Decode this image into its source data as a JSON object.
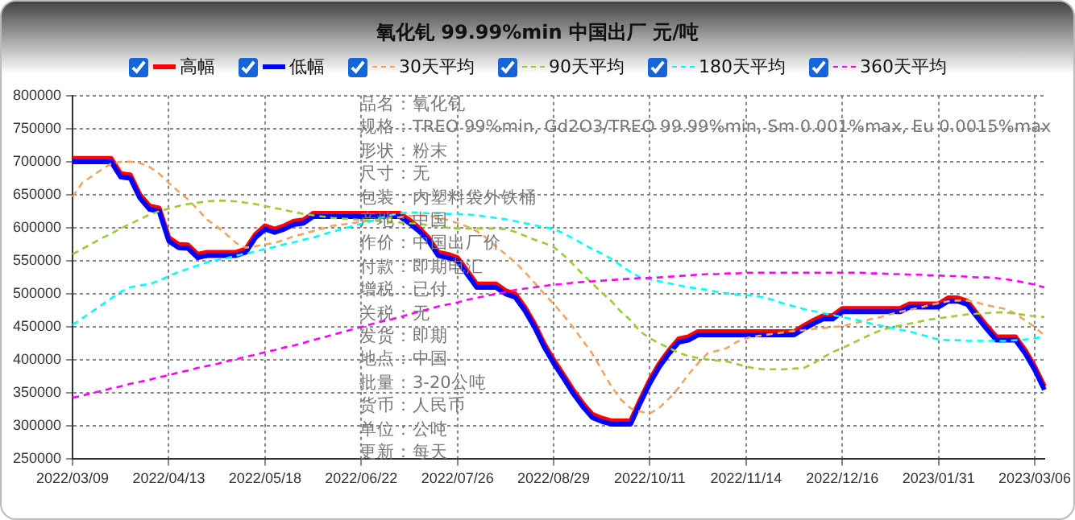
{
  "chart_data": {
    "type": "line",
    "title": "氧化钆 99.99%min 中国出厂 元/吨",
    "categories": [
      "2022/03/09",
      null,
      null,
      null,
      null,
      null,
      null,
      null,
      null,
      null,
      "2022/04/13",
      null,
      null,
      null,
      null,
      null,
      null,
      null,
      null,
      null,
      "2022/05/18",
      null,
      null,
      null,
      null,
      null,
      null,
      null,
      null,
      null,
      "2022/06/22",
      null,
      null,
      null,
      null,
      null,
      null,
      null,
      null,
      null,
      "2022/07/26",
      null,
      null,
      null,
      null,
      null,
      null,
      null,
      null,
      null,
      "2022/08/29",
      null,
      null,
      null,
      null,
      null,
      null,
      null,
      null,
      null,
      "2022/10/11",
      null,
      null,
      null,
      null,
      null,
      null,
      null,
      null,
      null,
      "2022/11/14",
      null,
      null,
      null,
      null,
      null,
      null,
      null,
      null,
      null,
      "2022/12/16",
      null,
      null,
      null,
      null,
      null,
      null,
      null,
      null,
      null,
      "2023/01/31",
      null,
      null,
      null,
      null,
      null,
      null,
      null,
      null,
      null,
      "2023/03/06",
      null
    ],
    "series": [
      {
        "name": "高幅",
        "color": "#ff0000",
        "line_style": "solid",
        "values": [
          705000,
          705000,
          705000,
          705000,
          705000,
          682000,
          680000,
          650000,
          633000,
          630000,
          585000,
          575000,
          574000,
          560000,
          563000,
          563000,
          563000,
          563000,
          568000,
          590000,
          603000,
          598000,
          603000,
          610000,
          612000,
          622000,
          622000,
          622000,
          622000,
          622000,
          622000,
          622000,
          622000,
          622000,
          622000,
          612000,
          600000,
          585000,
          563000,
          560000,
          555000,
          535000,
          515000,
          515000,
          515000,
          505000,
          500000,
          480000,
          455000,
          425000,
          400000,
          378000,
          355000,
          335000,
          318000,
          312000,
          308000,
          308000,
          308000,
          340000,
          370000,
          395000,
          415000,
          432000,
          435000,
          443000,
          443000,
          443000,
          443000,
          443000,
          443000,
          443000,
          443000,
          443000,
          443000,
          443000,
          452000,
          460000,
          467000,
          467000,
          478000,
          478000,
          478000,
          478000,
          478000,
          478000,
          478000,
          485000,
          485000,
          485000,
          485000,
          494000,
          494000,
          489000,
          470000,
          452000,
          435000,
          435000,
          435000,
          415000,
          390000,
          360000
        ]
      },
      {
        "name": "低幅",
        "color": "#0000ff",
        "line_style": "solid",
        "values": [
          700000,
          700000,
          700000,
          700000,
          700000,
          677000,
          675000,
          645000,
          628000,
          625000,
          580000,
          570000,
          569000,
          555000,
          558000,
          558000,
          558000,
          558000,
          563000,
          585000,
          598000,
          593000,
          598000,
          605000,
          607000,
          617000,
          617000,
          617000,
          617000,
          617000,
          617000,
          617000,
          617000,
          617000,
          617000,
          607000,
          595000,
          580000,
          558000,
          555000,
          550000,
          530000,
          510000,
          510000,
          510000,
          500000,
          495000,
          475000,
          450000,
          420000,
          395000,
          373000,
          350000,
          330000,
          313000,
          307000,
          303000,
          303000,
          303000,
          335000,
          365000,
          390000,
          410000,
          427000,
          430000,
          438000,
          438000,
          438000,
          438000,
          438000,
          438000,
          438000,
          438000,
          438000,
          438000,
          438000,
          447000,
          455000,
          462000,
          462000,
          473000,
          473000,
          473000,
          473000,
          473000,
          473000,
          473000,
          480000,
          480000,
          480000,
          480000,
          489000,
          489000,
          484000,
          465000,
          447000,
          430000,
          430000,
          430000,
          410000,
          385000,
          355000
        ]
      },
      {
        "name": "30天平均",
        "color": "#f4a460",
        "line_style": "dashed",
        "values": [
          647000,
          668000,
          678000,
          688000,
          697000,
          700000,
          700000,
          698000,
          692000,
          682000,
          668000,
          655000,
          643000,
          628000,
          612000,
          602000,
          590000,
          577000,
          570000,
          572000,
          575000,
          577000,
          582000,
          587000,
          591000,
          595000,
          599000,
          603000,
          605000,
          607000,
          609000,
          611000,
          613000,
          615000,
          616000,
          618000,
          619000,
          618000,
          616000,
          612000,
          607000,
          602000,
          595000,
          585000,
          572000,
          560000,
          548000,
          533000,
          517000,
          500000,
          485000,
          468000,
          450000,
          430000,
          410000,
          385000,
          360000,
          340000,
          327000,
          322000,
          319000,
          328000,
          342000,
          358000,
          378000,
          395000,
          410000,
          414000,
          418000,
          427000,
          433000,
          436000,
          438000,
          440000,
          442000,
          444000,
          445000,
          447000,
          448000,
          450000,
          451000,
          455000,
          458000,
          462000,
          465000,
          469000,
          473000,
          476000,
          479000,
          483000,
          486000,
          489000,
          490000,
          490000,
          487000,
          483000,
          480000,
          477000,
          470000,
          460000,
          450000,
          437000
        ]
      },
      {
        "name": "90天平均",
        "color": "#9acd32",
        "line_style": "dashed",
        "values": [
          560000,
          568000,
          576000,
          584000,
          591000,
          599000,
          606000,
          613000,
          620000,
          625000,
          629000,
          633000,
          636000,
          638000,
          640000,
          641000,
          641000,
          640000,
          638000,
          636000,
          633000,
          630000,
          627000,
          624000,
          621000,
          619000,
          617000,
          615000,
          614000,
          613000,
          612000,
          611000,
          610000,
          609000,
          608000,
          607000,
          606000,
          604000,
          602000,
          600000,
          599000,
          599000,
          599000,
          599000,
          599000,
          598000,
          594000,
          588000,
          582000,
          577000,
          571000,
          559000,
          545000,
          530000,
          516000,
          502000,
          489000,
          473000,
          460000,
          443000,
          433000,
          425000,
          418000,
          411000,
          406000,
          403000,
          401000,
          399000,
          398000,
          394000,
          390000,
          387000,
          386000,
          386000,
          386000,
          387000,
          388000,
          395000,
          404000,
          412000,
          418000,
          425000,
          432000,
          439000,
          445000,
          449000,
          452000,
          455000,
          458000,
          461000,
          463000,
          465000,
          467000,
          469000,
          470000,
          471000,
          472000,
          472000,
          470000,
          468000,
          466000,
          465000
        ]
      },
      {
        "name": "180天平均",
        "color": "#00ffff",
        "line_style": "dashed",
        "values": [
          453000,
          463000,
          473000,
          483000,
          493000,
          503000,
          510000,
          513000,
          515000,
          520000,
          527000,
          533000,
          538000,
          543000,
          548000,
          551000,
          554000,
          558000,
          561000,
          564000,
          568000,
          571000,
          575000,
          578000,
          582000,
          585000,
          590000,
          594000,
          598000,
          602000,
          606000,
          610000,
          615000,
          619000,
          622000,
          623000,
          623000,
          622000,
          622000,
          621000,
          621000,
          620000,
          619000,
          617000,
          615000,
          613000,
          610000,
          607000,
          604000,
          601000,
          598000,
          592000,
          584000,
          576000,
          568000,
          561000,
          553000,
          543000,
          533000,
          525000,
          522000,
          519000,
          516000,
          513000,
          510000,
          508000,
          506000,
          503000,
          501000,
          499000,
          498000,
          497000,
          494000,
          490000,
          485000,
          481000,
          477000,
          474000,
          471000,
          468000,
          465000,
          462000,
          459000,
          455000,
          452000,
          449000,
          446000,
          443000,
          439000,
          435000,
          431000,
          430000,
          430000,
          429000,
          429000,
          429000,
          429000,
          429000,
          430000,
          431000,
          433000,
          435000
        ]
      },
      {
        "name": "360天平均",
        "color": "#ff00ff",
        "line_style": "dashed",
        "values": [
          343000,
          346000,
          350000,
          353000,
          357000,
          360000,
          364000,
          367000,
          370000,
          374000,
          377000,
          381000,
          384000,
          388000,
          391000,
          394000,
          398000,
          401000,
          405000,
          408000,
          412000,
          415000,
          419000,
          422000,
          426000,
          430000,
          434000,
          438000,
          442000,
          446000,
          450000,
          454000,
          458000,
          461000,
          465000,
          469000,
          473000,
          477000,
          481000,
          484000,
          487000,
          491000,
          494000,
          497000,
          500000,
          503000,
          506000,
          508000,
          510000,
          512000,
          514000,
          515000,
          517000,
          518000,
          519000,
          520000,
          521000,
          522000,
          523000,
          524000,
          524000,
          525000,
          526000,
          527000,
          528000,
          529000,
          530000,
          530000,
          531000,
          531000,
          532000,
          532000,
          532000,
          532000,
          532000,
          532000,
          532000,
          532000,
          532000,
          532000,
          532000,
          532000,
          532000,
          531000,
          531000,
          530000,
          530000,
          529000,
          529000,
          528000,
          528000,
          527000,
          527000,
          526000,
          525000,
          525000,
          524000,
          522000,
          520000,
          517000,
          514000,
          510000
        ]
      }
    ],
    "ylim": [
      250000,
      800000
    ],
    "yticks": [
      250000,
      300000,
      350000,
      400000,
      450000,
      500000,
      550000,
      600000,
      650000,
      700000,
      750000,
      800000
    ],
    "grid": true,
    "legend": "top",
    "annotations": [
      "品名：氧化钆",
      "规格：TREO 99%min, Gd2O3/TREO 99.99%min, Sm 0.001%max, Eu 0.0015%max",
      "形状：粉末",
      "尺寸：无",
      "包装：内塑料袋外铁桶",
      "产地：中国",
      "作价：中国出厂价",
      "付款：即期电汇",
      "增税：已付",
      "关税：无",
      "发货：即期",
      "地点：中国",
      "批量：3-20公吨",
      "货币：人民币",
      "单位：公吨",
      "更新：每天"
    ]
  }
}
